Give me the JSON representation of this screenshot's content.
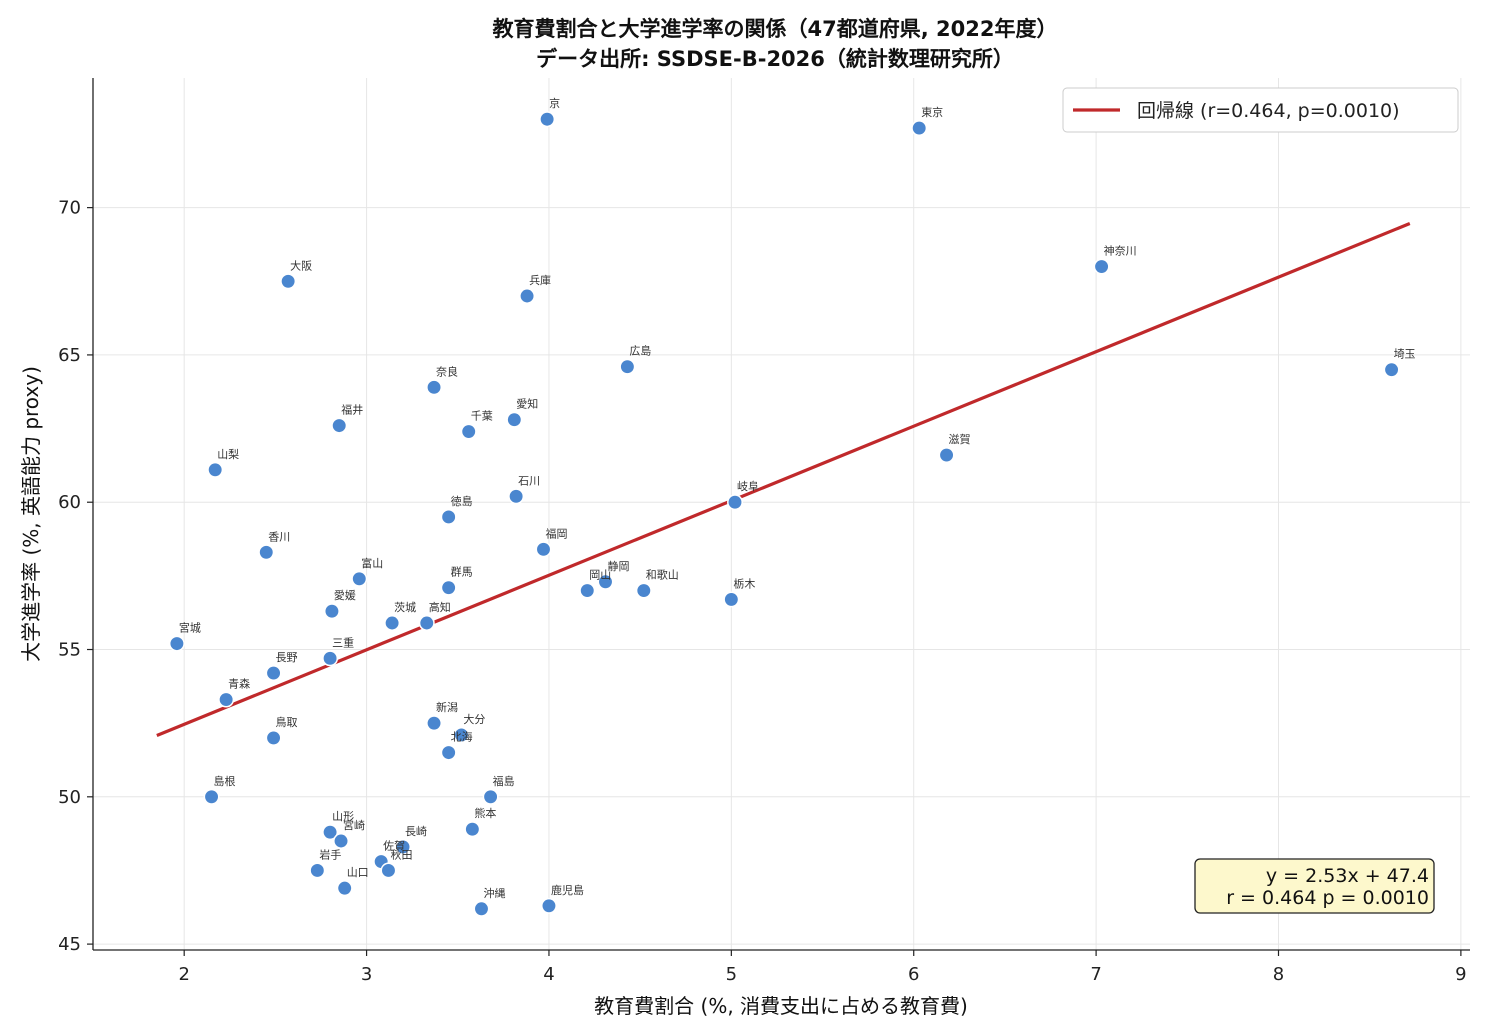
{
  "chart_data": {
    "type": "scatter",
    "title": "教育費割合と大学進学率の関係（47都道府県, 2022年度）",
    "subtitle": "データ出所: SSDSE-B-2026（統計数理研究所）",
    "xlabel": "教育費割合 (%, 消費支出に占める教育費)",
    "ylabel": "大学進学率 (%, 英語能力 proxy)",
    "xlim": [
      1.5,
      9.05
    ],
    "ylim": [
      44.8,
      74.4
    ],
    "xticks": [
      "2",
      "3",
      "4",
      "5",
      "6",
      "7",
      "8",
      "9"
    ],
    "yticks": [
      "45",
      "50",
      "55",
      "60",
      "65",
      "70"
    ],
    "grid": true,
    "colors": {
      "points": "#4a86cf",
      "regression": "#c0292b",
      "stats_bg": "#fdf8cc"
    },
    "points": [
      {
        "label": "京",
        "x": 3.99,
        "y": 73.0
      },
      {
        "label": "東京",
        "x": 6.03,
        "y": 72.7
      },
      {
        "label": "神奈川",
        "x": 7.03,
        "y": 68.0
      },
      {
        "label": "大阪",
        "x": 2.57,
        "y": 67.5
      },
      {
        "label": "兵庫",
        "x": 3.88,
        "y": 67.0
      },
      {
        "label": "広島",
        "x": 4.43,
        "y": 64.6
      },
      {
        "label": "埼玉",
        "x": 8.62,
        "y": 64.5
      },
      {
        "label": "奈良",
        "x": 3.37,
        "y": 63.9
      },
      {
        "label": "愛知",
        "x": 3.81,
        "y": 62.8
      },
      {
        "label": "福井",
        "x": 2.85,
        "y": 62.6
      },
      {
        "label": "千葉",
        "x": 3.56,
        "y": 62.4
      },
      {
        "label": "滋賀",
        "x": 6.18,
        "y": 61.6
      },
      {
        "label": "山梨",
        "x": 2.17,
        "y": 61.1
      },
      {
        "label": "石川",
        "x": 3.82,
        "y": 60.2
      },
      {
        "label": "岐阜",
        "x": 5.02,
        "y": 60.0
      },
      {
        "label": "徳島",
        "x": 3.45,
        "y": 59.5
      },
      {
        "label": "福岡",
        "x": 3.97,
        "y": 58.4
      },
      {
        "label": "香川",
        "x": 2.45,
        "y": 58.3
      },
      {
        "label": "富山",
        "x": 2.96,
        "y": 57.4
      },
      {
        "label": "静岡",
        "x": 4.31,
        "y": 57.3
      },
      {
        "label": "群馬",
        "x": 3.45,
        "y": 57.1
      },
      {
        "label": "岡山",
        "x": 4.21,
        "y": 57.0
      },
      {
        "label": "和歌山",
        "x": 4.52,
        "y": 57.0
      },
      {
        "label": "栃木",
        "x": 5.0,
        "y": 56.7
      },
      {
        "label": "愛媛",
        "x": 2.81,
        "y": 56.3
      },
      {
        "label": "高知",
        "x": 3.33,
        "y": 55.9
      },
      {
        "label": "茨城",
        "x": 3.14,
        "y": 55.9
      },
      {
        "label": "宮城",
        "x": 1.96,
        "y": 55.2
      },
      {
        "label": "三重",
        "x": 2.8,
        "y": 54.7
      },
      {
        "label": "長野",
        "x": 2.49,
        "y": 54.2
      },
      {
        "label": "青森",
        "x": 2.23,
        "y": 53.3
      },
      {
        "label": "新潟",
        "x": 3.37,
        "y": 52.5
      },
      {
        "label": "大分",
        "x": 3.52,
        "y": 52.1
      },
      {
        "label": "鳥取",
        "x": 2.49,
        "y": 52.0
      },
      {
        "label": "北海",
        "x": 3.45,
        "y": 51.5
      },
      {
        "label": "福島",
        "x": 3.68,
        "y": 50.0
      },
      {
        "label": "島根",
        "x": 2.15,
        "y": 50.0
      },
      {
        "label": "熊本",
        "x": 3.58,
        "y": 48.9
      },
      {
        "label": "山形",
        "x": 2.8,
        "y": 48.8
      },
      {
        "label": "宮崎",
        "x": 2.86,
        "y": 48.5
      },
      {
        "label": "長崎",
        "x": 3.2,
        "y": 48.3
      },
      {
        "label": "佐賀",
        "x": 3.08,
        "y": 47.8
      },
      {
        "label": "秋田",
        "x": 3.12,
        "y": 47.5
      },
      {
        "label": "岩手",
        "x": 2.73,
        "y": 47.5
      },
      {
        "label": "山口",
        "x": 2.88,
        "y": 46.9
      },
      {
        "label": "鹿児島",
        "x": 4.0,
        "y": 46.3
      },
      {
        "label": "沖縄",
        "x": 3.63,
        "y": 46.2
      }
    ],
    "regression": {
      "slope": 2.53,
      "intercept": 47.4,
      "x_range": [
        1.85,
        8.72
      ],
      "legend_label": "回帰線 (r=0.464, p=0.0010)"
    },
    "legend_position": "top-right",
    "stats_box": {
      "line1": "y = 2.53x + 47.4",
      "line2": "r = 0.464  p = 0.0010",
      "position": "bottom-right"
    }
  }
}
